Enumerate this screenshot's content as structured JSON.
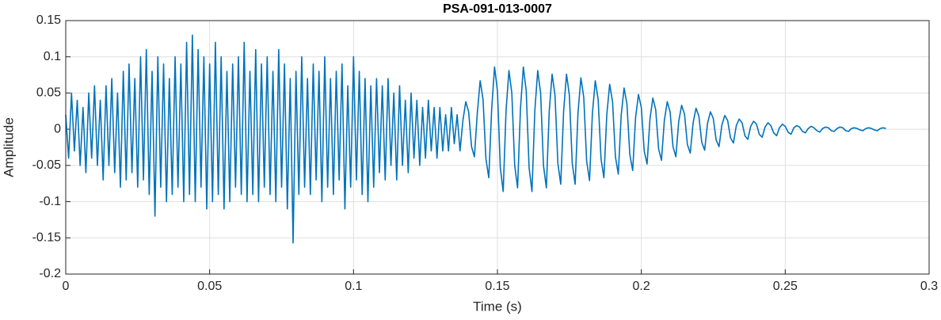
{
  "chart_data": {
    "type": "line",
    "title": "PSA-091-013-0007",
    "x_label": "Time (s)",
    "y_label": "Amplitude",
    "xlim": [
      0,
      0.3
    ],
    "ylim": [
      -0.2,
      0.15
    ],
    "xticks": [
      0,
      0.05,
      0.1,
      0.15,
      0.2,
      0.25,
      0.3
    ],
    "yticks": [
      -0.2,
      -0.15,
      -0.1,
      -0.05,
      0,
      0.05,
      0.1,
      0.15
    ],
    "grid": true,
    "x": [
      0,
      0.001,
      0.002,
      0.003,
      0.004,
      0.005,
      0.006,
      0.007,
      0.008,
      0.009,
      0.01,
      0.011,
      0.012,
      0.013,
      0.014,
      0.015,
      0.016,
      0.017,
      0.018,
      0.019,
      0.02,
      0.021,
      0.022,
      0.023,
      0.024,
      0.025,
      0.026,
      0.027,
      0.028,
      0.029,
      0.03,
      0.031,
      0.032,
      0.033,
      0.034,
      0.035,
      0.036,
      0.037,
      0.038,
      0.039,
      0.04,
      0.041,
      0.042,
      0.043,
      0.044,
      0.045,
      0.046,
      0.047,
      0.048,
      0.049,
      0.05,
      0.051,
      0.052,
      0.053,
      0.054,
      0.055,
      0.056,
      0.057,
      0.058,
      0.059,
      0.06,
      0.061,
      0.062,
      0.063,
      0.064,
      0.065,
      0.066,
      0.067,
      0.068,
      0.069,
      0.07,
      0.071,
      0.072,
      0.073,
      0.074,
      0.075,
      0.076,
      0.077,
      0.078,
      0.079,
      0.08,
      0.081,
      0.082,
      0.083,
      0.084,
      0.085,
      0.086,
      0.087,
      0.088,
      0.089,
      0.09,
      0.091,
      0.092,
      0.093,
      0.094,
      0.095,
      0.096,
      0.097,
      0.098,
      0.099,
      0.1,
      0.101,
      0.102,
      0.103,
      0.104,
      0.105,
      0.106,
      0.107,
      0.108,
      0.109,
      0.11,
      0.111,
      0.112,
      0.113,
      0.114,
      0.115,
      0.116,
      0.117,
      0.118,
      0.119,
      0.12,
      0.121,
      0.122,
      0.123,
      0.124,
      0.125,
      0.126,
      0.127,
      0.128,
      0.129,
      0.13,
      0.131,
      0.132,
      0.133,
      0.134,
      0.135,
      0.136,
      0.137,
      0.138,
      0.139,
      0.14,
      0.141,
      0.142,
      0.143,
      0.144,
      0.145,
      0.146,
      0.147,
      0.148,
      0.149,
      0.15,
      0.151,
      0.152,
      0.153,
      0.154,
      0.155,
      0.156,
      0.157,
      0.158,
      0.159,
      0.16,
      0.161,
      0.162,
      0.163,
      0.164,
      0.165,
      0.166,
      0.167,
      0.168,
      0.169,
      0.17,
      0.171,
      0.172,
      0.173,
      0.174,
      0.175,
      0.176,
      0.177,
      0.178,
      0.179,
      0.18,
      0.181,
      0.182,
      0.183,
      0.184,
      0.185,
      0.186,
      0.187,
      0.188,
      0.189,
      0.19,
      0.191,
      0.192,
      0.193,
      0.194,
      0.195,
      0.196,
      0.197,
      0.198,
      0.199,
      0.2,
      0.201,
      0.202,
      0.203,
      0.204,
      0.205,
      0.206,
      0.207,
      0.208,
      0.209,
      0.21,
      0.211,
      0.212,
      0.213,
      0.214,
      0.215,
      0.216,
      0.217,
      0.218,
      0.219,
      0.22,
      0.221,
      0.222,
      0.223,
      0.224,
      0.225,
      0.226,
      0.227,
      0.228,
      0.229,
      0.23,
      0.231,
      0.232,
      0.233,
      0.234,
      0.235,
      0.236,
      0.237,
      0.238,
      0.239,
      0.24,
      0.241,
      0.242,
      0.243,
      0.244,
      0.245,
      0.246,
      0.247,
      0.248,
      0.249,
      0.25,
      0.251,
      0.252,
      0.253,
      0.254,
      0.255,
      0.256,
      0.257,
      0.258,
      0.259,
      0.26,
      0.261,
      0.262,
      0.263,
      0.264,
      0.265,
      0.266,
      0.267,
      0.268,
      0.269,
      0.27,
      0.271,
      0.272,
      0.273,
      0.274,
      0.275,
      0.276,
      0.277,
      0.278,
      0.279,
      0.28,
      0.281,
      0.282,
      0.283,
      0.284,
      0.285
    ],
    "series": [
      {
        "color": "#0072bd",
        "values": [
          0.02,
          -0.04,
          0.05,
          -0.03,
          0.04,
          -0.05,
          0.03,
          -0.06,
          0.05,
          -0.04,
          0.06,
          -0.05,
          0.04,
          -0.07,
          0.06,
          -0.05,
          0.07,
          -0.06,
          0.05,
          -0.08,
          0.08,
          -0.07,
          0.09,
          -0.06,
          0.07,
          -0.08,
          0.1,
          -0.07,
          0.11,
          -0.09,
          0.08,
          -0.12,
          0.1,
          -0.08,
          0.09,
          -0.1,
          0.07,
          -0.09,
          0.1,
          -0.08,
          0.09,
          -0.1,
          0.12,
          -0.09,
          0.13,
          -0.1,
          0.11,
          -0.08,
          0.1,
          -0.11,
          0.09,
          -0.1,
          0.12,
          -0.09,
          0.1,
          -0.11,
          0.08,
          -0.1,
          0.09,
          -0.08,
          0.1,
          -0.09,
          0.12,
          -0.1,
          0.08,
          -0.09,
          0.11,
          -0.1,
          0.09,
          -0.08,
          0.1,
          -0.09,
          0.08,
          -0.1,
          0.11,
          -0.08,
          0.09,
          -0.11,
          0.07,
          -0.157,
          0.08,
          -0.09,
          0.1,
          -0.08,
          0.07,
          -0.09,
          0.09,
          -0.07,
          0.08,
          -0.1,
          0.1,
          -0.08,
          0.07,
          -0.09,
          0.08,
          -0.07,
          0.09,
          -0.11,
          0.06,
          -0.08,
          0.1,
          -0.07,
          0.08,
          -0.09,
          0.07,
          -0.1,
          0.06,
          -0.08,
          0.07,
          -0.06,
          0.06,
          -0.07,
          0.07,
          -0.05,
          0.05,
          -0.07,
          0.06,
          -0.05,
          0.04,
          -0.06,
          0.05,
          -0.04,
          0.04,
          -0.05,
          0.03,
          -0.04,
          0.04,
          -0.03,
          0.03,
          -0.04,
          0.03,
          -0.03,
          0.02,
          -0.03,
          0.03,
          -0.02,
          0.02,
          -0.03,
          0.012,
          0.038,
          0.024,
          -0.024,
          -0.038,
          0.022,
          0.067,
          0.041,
          -0.041,
          -0.067,
          0.028,
          0.086,
          0.053,
          -0.053,
          -0.086,
          0.026,
          0.081,
          0.05,
          -0.05,
          -0.081,
          0.028,
          0.086,
          0.053,
          -0.053,
          -0.086,
          0.026,
          0.081,
          0.05,
          -0.05,
          -0.081,
          0.025,
          0.076,
          0.047,
          -0.047,
          -0.076,
          0.025,
          0.076,
          0.047,
          -0.047,
          -0.076,
          0.023,
          0.071,
          0.044,
          -0.044,
          -0.071,
          0.022,
          0.067,
          0.041,
          -0.041,
          -0.067,
          0.02,
          0.062,
          0.038,
          -0.038,
          -0.062,
          0.019,
          0.057,
          0.035,
          -0.035,
          -0.057,
          0.016,
          0.048,
          0.03,
          -0.03,
          -0.048,
          0.014,
          0.043,
          0.027,
          -0.027,
          -0.043,
          0.012,
          0.038,
          0.024,
          -0.024,
          -0.038,
          0.011,
          0.033,
          0.021,
          -0.021,
          -0.033,
          0.009,
          0.029,
          0.018,
          -0.018,
          -0.029,
          0.008,
          0.024,
          0.015,
          -0.015,
          -0.024,
          0.006,
          0.019,
          0.012,
          -0.012,
          -0.019,
          0.005,
          0.014,
          0.009,
          -0.009,
          -0.014,
          0.004,
          0.011,
          0.007,
          -0.007,
          -0.011,
          0.003,
          0.009,
          0.005,
          -0.005,
          -0.009,
          0.002,
          0.007,
          0.004,
          -0.004,
          -0.007,
          0.002,
          0.005,
          0.003,
          -0.003,
          -0.005,
          0.001,
          0.004,
          0.002,
          -0.002,
          -0.004,
          0.001,
          0.003,
          0.002,
          -0.002,
          -0.003,
          0.001,
          0.003,
          0.002,
          -0.002,
          -0.003,
          0.001,
          0.002,
          0.001,
          -0.001,
          -0.002,
          0.001,
          0.002,
          0.001,
          -0.001,
          -0.002,
          0.001,
          0.002,
          0.001
        ]
      }
    ]
  }
}
